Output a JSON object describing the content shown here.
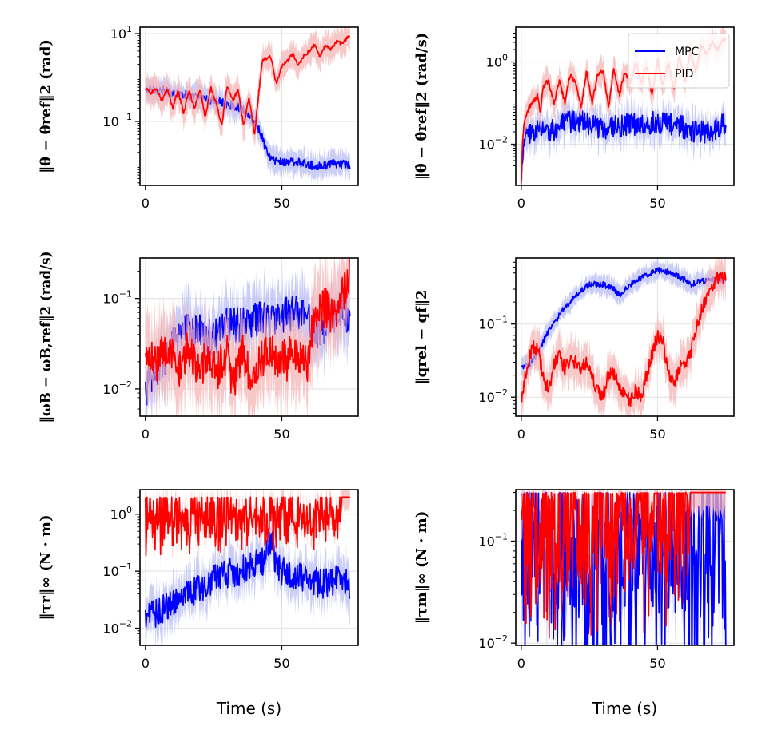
{
  "colors": {
    "mpc": "#0000ff",
    "pid": "#ff0000",
    "mpc_band": "#b8bcf4",
    "pid_band": "#f6b6b6",
    "grid": "#e6e6e6"
  },
  "chart_data": [
    {
      "type": "line",
      "yscale": "log",
      "xlim": [
        -2,
        78
      ],
      "ylim": [
        0.0035,
        14
      ],
      "xticks": [
        0,
        50
      ],
      "yticks": [
        {
          "v": 10,
          "base": "10",
          "exp": "1"
        },
        {
          "v": 0.1,
          "base": "10",
          "exp": "−1"
        }
      ],
      "ylabel": "‖θ − θref‖2 (rad)",
      "xlabel": "",
      "grid": true,
      "legend": null,
      "series": [
        {
          "name": "MPC",
          "spread": 0.25,
          "noise": 0.1,
          "freq": 0,
          "x": [
            0,
            5,
            10,
            15,
            20,
            25,
            30,
            35,
            38,
            40,
            42,
            44,
            46,
            50,
            55,
            60,
            65,
            70,
            75
          ],
          "y": [
            0.5,
            0.52,
            0.45,
            0.4,
            0.33,
            0.3,
            0.25,
            0.2,
            0.14,
            0.1,
            0.06,
            0.025,
            0.014,
            0.012,
            0.012,
            0.01,
            0.01,
            0.011,
            0.01
          ]
        },
        {
          "name": "PID",
          "spread": 0.3,
          "noise": 0.04,
          "freq": 0,
          "x": [
            0,
            2,
            4,
            6,
            8,
            10,
            12,
            14,
            16,
            18,
            20,
            22,
            24,
            26,
            28,
            30,
            32,
            34,
            36,
            38,
            40,
            42,
            43,
            46,
            48,
            50,
            52,
            54,
            56,
            58,
            60,
            62,
            64,
            66,
            68,
            70,
            72,
            74,
            75
          ],
          "y": [
            0.55,
            0.45,
            0.55,
            0.3,
            0.55,
            0.2,
            0.5,
            0.15,
            0.5,
            0.2,
            0.55,
            0.12,
            0.6,
            0.25,
            0.08,
            0.65,
            0.3,
            0.5,
            0.08,
            0.35,
            0.05,
            0.8,
            2.5,
            3,
            0.7,
            1.8,
            2.5,
            3.5,
            1.8,
            3,
            4,
            5.5,
            3,
            5.5,
            4.5,
            6.5,
            6,
            8,
            8.5
          ]
        }
      ]
    },
    {
      "type": "line",
      "yscale": "log",
      "xlim": [
        -2,
        78
      ],
      "ylim": [
        0.001,
        7
      ],
      "xticks": [
        0,
        50
      ],
      "yticks": [
        {
          "v": 1,
          "base": "10",
          "exp": "0"
        },
        {
          "v": 0.01,
          "base": "10",
          "exp": "−2"
        }
      ],
      "ylabel": "‖θ̇ − θ̇ref‖2 (rad/s)",
      "xlabel": "",
      "grid": true,
      "legend": "upper right",
      "series": [
        {
          "name": "MPC",
          "spread": 0.35,
          "noise": 0.28,
          "freq": 0,
          "x": [
            0,
            0.8,
            2,
            5,
            10,
            15,
            20,
            25,
            30,
            40,
            50,
            60,
            65,
            70,
            75
          ],
          "y": [
            0.001,
            0.012,
            0.015,
            0.022,
            0.02,
            0.03,
            0.04,
            0.03,
            0.025,
            0.03,
            0.035,
            0.025,
            0.02,
            0.02,
            0.035
          ]
        },
        {
          "name": "PID",
          "spread": 0.3,
          "noise": 0.06,
          "freq": 0,
          "x": [
            0,
            0.4,
            1,
            2,
            4,
            6,
            7,
            8,
            10,
            12,
            14,
            16,
            18,
            20,
            22,
            24,
            26,
            28,
            30,
            32,
            34,
            36,
            38,
            40,
            42,
            44,
            46,
            48,
            50,
            52,
            54,
            56,
            58,
            60,
            62,
            64,
            66,
            68,
            70,
            72,
            74,
            75
          ],
          "y": [
            0.001,
            0.01,
            0.03,
            0.06,
            0.1,
            0.15,
            0.05,
            0.25,
            0.35,
            0.1,
            0.35,
            0.1,
            0.5,
            0.3,
            0.08,
            0.6,
            0.1,
            0.5,
            0.6,
            0.08,
            0.7,
            0.15,
            0.6,
            0.3,
            1.0,
            0.3,
            0.8,
            0.15,
            1.2,
            0.25,
            1.0,
            0.2,
            1.5,
            0.3,
            2.0,
            0.5,
            2.5,
            1.5,
            3.0,
            2.0,
            3.5,
            3.5
          ]
        }
      ]
    },
    {
      "type": "line",
      "yscale": "log",
      "xlim": [
        -2,
        78
      ],
      "ylim": [
        0.005,
        0.28
      ],
      "xticks": [
        0,
        50
      ],
      "yticks": [
        {
          "v": 0.1,
          "base": "10",
          "exp": "−1"
        },
        {
          "v": 0.01,
          "base": "10",
          "exp": "−2"
        }
      ],
      "ylabel": "‖ωB − ωB,ref‖2 (rad/s)",
      "xlabel": "",
      "grid": true,
      "legend": null,
      "series": [
        {
          "name": "MPC",
          "spread": 0.3,
          "noise": 0.2,
          "freq": 0,
          "x": [
            0,
            2,
            4,
            6,
            8,
            10,
            12,
            14,
            16,
            18,
            20,
            25,
            30,
            35,
            40,
            45,
            50,
            55,
            60,
            63,
            66,
            70,
            72,
            75
          ],
          "y": [
            0.01,
            0.012,
            0.015,
            0.02,
            0.025,
            0.03,
            0.035,
            0.04,
            0.045,
            0.04,
            0.045,
            0.035,
            0.055,
            0.05,
            0.06,
            0.055,
            0.065,
            0.07,
            0.06,
            0.045,
            0.05,
            0.07,
            0.075,
            0.06
          ]
        },
        {
          "name": "PID",
          "spread": 0.4,
          "noise": 0.22,
          "freq": 0,
          "x": [
            0,
            2,
            4,
            6,
            8,
            10,
            12,
            14,
            16,
            18,
            20,
            22,
            24,
            26,
            28,
            30,
            32,
            34,
            36,
            38,
            40,
            42,
            44,
            46,
            48,
            50,
            52,
            54,
            56,
            58,
            60,
            61,
            62,
            64,
            66,
            68,
            70,
            72,
            74,
            75
          ],
          "y": [
            0.02,
            0.025,
            0.018,
            0.03,
            0.02,
            0.025,
            0.015,
            0.02,
            0.03,
            0.02,
            0.015,
            0.02,
            0.018,
            0.015,
            0.02,
            0.025,
            0.01,
            0.02,
            0.025,
            0.015,
            0.012,
            0.02,
            0.025,
            0.03,
            0.02,
            0.025,
            0.02,
            0.03,
            0.025,
            0.02,
            0.02,
            0.04,
            0.06,
            0.07,
            0.08,
            0.07,
            0.08,
            0.1,
            0.15,
            0.2
          ]
        }
      ]
    },
    {
      "type": "line",
      "yscale": "log",
      "xlim": [
        -2,
        78
      ],
      "ylim": [
        0.0055,
        0.8
      ],
      "xticks": [
        0,
        50
      ],
      "yticks": [
        {
          "v": 0.1,
          "base": "10",
          "exp": "−1"
        },
        {
          "v": 0.01,
          "base": "10",
          "exp": "−2"
        }
      ],
      "ylabel": "‖qrel − qf‖2",
      "xlabel": "",
      "grid": true,
      "legend": null,
      "series": [
        {
          "name": "MPC",
          "spread": 0.12,
          "noise": 0.04,
          "freq": 0,
          "x": [
            0,
            3,
            6,
            10,
            15,
            20,
            25,
            30,
            34,
            36,
            40,
            45,
            50,
            55,
            60,
            62,
            65,
            70,
            75
          ],
          "y": [
            0.025,
            0.028,
            0.04,
            0.08,
            0.15,
            0.25,
            0.35,
            0.35,
            0.3,
            0.25,
            0.35,
            0.45,
            0.55,
            0.5,
            0.4,
            0.35,
            0.38,
            0.4,
            0.4
          ]
        },
        {
          "name": "PID",
          "spread": 0.25,
          "noise": 0.1,
          "freq": 0,
          "x": [
            0,
            2,
            4,
            6,
            8,
            10,
            12,
            14,
            16,
            18,
            20,
            22,
            24,
            26,
            28,
            30,
            32,
            34,
            36,
            38,
            40,
            42,
            44,
            46,
            48,
            50,
            52,
            54,
            56,
            58,
            60,
            62,
            64,
            66,
            68,
            70,
            72,
            75
          ],
          "y": [
            0.01,
            0.025,
            0.05,
            0.045,
            0.02,
            0.012,
            0.03,
            0.035,
            0.025,
            0.03,
            0.03,
            0.025,
            0.03,
            0.02,
            0.012,
            0.01,
            0.02,
            0.02,
            0.015,
            0.01,
            0.009,
            0.012,
            0.01,
            0.02,
            0.04,
            0.07,
            0.06,
            0.02,
            0.015,
            0.025,
            0.03,
            0.04,
            0.08,
            0.15,
            0.25,
            0.35,
            0.42,
            0.45
          ]
        }
      ]
    },
    {
      "type": "line",
      "yscale": "log",
      "xlim": [
        -2,
        78
      ],
      "ylim": [
        0.005,
        2.7
      ],
      "xticks": [
        0,
        50
      ],
      "yticks": [
        {
          "v": 1,
          "base": "10",
          "exp": "0"
        },
        {
          "v": 0.1,
          "base": "10",
          "exp": "−1"
        },
        {
          "v": 0.01,
          "base": "10",
          "exp": "−2"
        }
      ],
      "ylabel": "‖τr‖∞ (N · m)",
      "xlabel": "Time (s)",
      "grid": true,
      "legend": null,
      "series": [
        {
          "name": "MPC",
          "spread": 0.35,
          "noise": 0.26,
          "freq": 0,
          "x": [
            0,
            5,
            10,
            15,
            20,
            25,
            30,
            35,
            40,
            44,
            46,
            48,
            50,
            55,
            60,
            65,
            70,
            75
          ],
          "y": [
            0.015,
            0.02,
            0.03,
            0.035,
            0.05,
            0.07,
            0.09,
            0.1,
            0.14,
            0.15,
            0.4,
            0.12,
            0.1,
            0.08,
            0.07,
            0.06,
            0.07,
            0.06
          ]
        },
        {
          "name": "PID",
          "spread": 0.2,
          "noise": 0.3,
          "freq": 0.85,
          "cap": 2.0,
          "capAfter": 72,
          "x": [
            0,
            75
          ],
          "y": [
            1.6,
            1.8
          ]
        }
      ]
    },
    {
      "type": "line",
      "yscale": "log",
      "xlim": [
        -2,
        78
      ],
      "ylim": [
        0.0095,
        0.32
      ],
      "xticks": [
        0,
        50
      ],
      "yticks": [
        {
          "v": 0.1,
          "base": "10",
          "exp": "−1"
        },
        {
          "v": 0.01,
          "base": "10",
          "exp": "−2"
        }
      ],
      "ylabel": "‖τm‖∞ (N · m)",
      "xlabel": "Time (s)",
      "grid": true,
      "legend": null,
      "series": [
        {
          "name": "MPC",
          "spread": 0.3,
          "noise": 0.85,
          "freq": 0.5,
          "cap": 0.3,
          "x": [
            0,
            75
          ],
          "y": [
            0.15,
            0.12
          ]
        },
        {
          "name": "PID",
          "spread": 0.2,
          "noise": 0.75,
          "freq": 0.9,
          "cap": 0.3,
          "capAfter": 62,
          "x": [
            0,
            75
          ],
          "y": [
            0.25,
            0.3
          ]
        }
      ]
    }
  ]
}
